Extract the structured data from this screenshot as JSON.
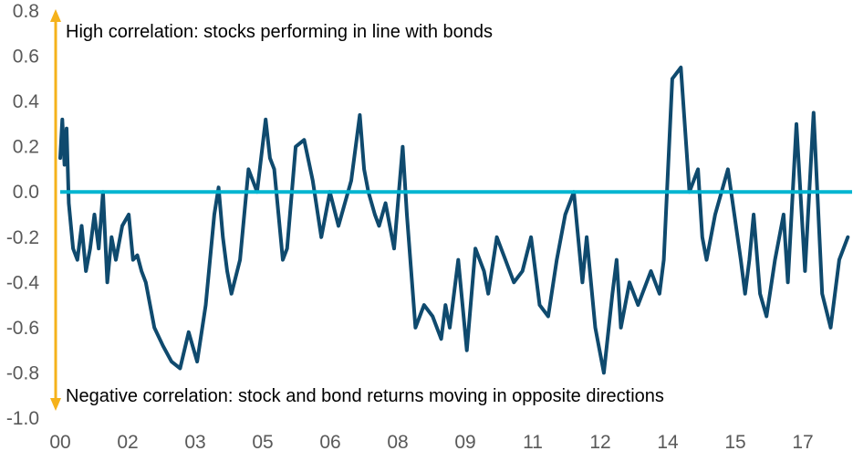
{
  "chart_data": {
    "type": "line",
    "title": "",
    "xlabel": "",
    "ylabel": "",
    "ylim": [
      -1.0,
      0.8
    ],
    "xlim": [
      2000,
      2018.5
    ],
    "y_ticks": [
      "0.8",
      "0.6",
      "0.4",
      "0.2",
      "0.0",
      "-0.2",
      "-0.4",
      "-0.6",
      "-0.8",
      "-1.0"
    ],
    "x_ticks": [
      "00",
      "02",
      "03",
      "05",
      "06",
      "08",
      "09",
      "11",
      "12",
      "14",
      "15",
      "17"
    ],
    "grid": false,
    "legend": "none",
    "reference_line": {
      "y": 0.0,
      "color": "#00B5D1"
    },
    "arrow_color": "#F5B21B",
    "annotations": {
      "top": "High correlation: stocks performing in line with bonds",
      "bottom": "Negative correlation: stock and bond returns moving in opposite directions"
    },
    "series": [
      {
        "color": "#0F4A6E",
        "x": [
          2000.0,
          2000.05,
          2000.1,
          2000.15,
          2000.2,
          2000.3,
          2000.4,
          2000.5,
          2000.6,
          2000.7,
          2000.8,
          2000.9,
          2001.0,
          2001.1,
          2001.2,
          2001.3,
          2001.45,
          2001.6,
          2001.7,
          2001.8,
          2001.9,
          2002.0,
          2002.1,
          2002.2,
          2002.4,
          2002.6,
          2002.8,
          2003.0,
          2003.2,
          2003.4,
          2003.5,
          2003.6,
          2003.7,
          2003.8,
          2003.9,
          2004.0,
          2004.2,
          2004.4,
          2004.6,
          2004.8,
          2004.9,
          2005.0,
          2005.1,
          2005.2,
          2005.3,
          2005.5,
          2005.7,
          2005.9,
          2006.1,
          2006.3,
          2006.5,
          2006.8,
          2007.0,
          2007.1,
          2007.2,
          2007.35,
          2007.45,
          2007.6,
          2007.8,
          2008.0,
          2008.1,
          2008.3,
          2008.5,
          2008.7,
          2008.9,
          2009.0,
          2009.1,
          2009.3,
          2009.5,
          2009.7,
          2009.9,
          2010.0,
          2010.2,
          2010.4,
          2010.6,
          2010.8,
          2011.0,
          2011.2,
          2011.4,
          2011.6,
          2011.8,
          2012.0,
          2012.2,
          2012.3,
          2012.5,
          2012.7,
          2012.9,
          2013.0,
          2013.1,
          2013.3,
          2013.5,
          2013.8,
          2014.0,
          2014.1,
          2014.3,
          2014.5,
          2014.7,
          2014.9,
          2015.0,
          2015.1,
          2015.3,
          2015.6,
          2015.9,
          2016.0,
          2016.1,
          2016.2,
          2016.35,
          2016.5,
          2016.7,
          2016.9,
          2017.0,
          2017.2,
          2017.4,
          2017.6,
          2017.8,
          2018.0,
          2018.2,
          2018.4
        ],
        "values": [
          0.15,
          0.32,
          0.12,
          0.28,
          -0.05,
          -0.25,
          -0.3,
          -0.15,
          -0.35,
          -0.25,
          -0.1,
          -0.25,
          0.0,
          -0.4,
          -0.2,
          -0.3,
          -0.15,
          -0.1,
          -0.3,
          -0.28,
          -0.35,
          -0.4,
          -0.5,
          -0.6,
          -0.68,
          -0.75,
          -0.78,
          -0.62,
          -0.75,
          -0.5,
          -0.3,
          -0.1,
          0.02,
          -0.2,
          -0.35,
          -0.45,
          -0.3,
          0.1,
          0.0,
          0.32,
          0.15,
          0.1,
          -0.1,
          -0.3,
          -0.25,
          0.2,
          0.23,
          0.05,
          -0.2,
          0.0,
          -0.15,
          0.05,
          0.34,
          0.1,
          0.0,
          -0.1,
          -0.15,
          -0.05,
          -0.25,
          0.2,
          -0.1,
          -0.6,
          -0.5,
          -0.55,
          -0.65,
          -0.5,
          -0.6,
          -0.3,
          -0.7,
          -0.25,
          -0.35,
          -0.45,
          -0.2,
          -0.3,
          -0.4,
          -0.35,
          -0.2,
          -0.5,
          -0.55,
          -0.3,
          -0.1,
          0.0,
          -0.4,
          -0.2,
          -0.6,
          -0.8,
          -0.45,
          -0.3,
          -0.6,
          -0.4,
          -0.5,
          -0.35,
          -0.45,
          -0.3,
          0.5,
          0.55,
          0.0,
          0.1,
          -0.2,
          -0.3,
          -0.1,
          0.1,
          -0.3,
          -0.45,
          -0.3,
          -0.1,
          -0.45,
          -0.55,
          -0.3,
          -0.1,
          -0.4,
          0.3,
          -0.35,
          0.35,
          -0.45,
          -0.6,
          -0.3,
          -0.2
        ]
      }
    ]
  }
}
